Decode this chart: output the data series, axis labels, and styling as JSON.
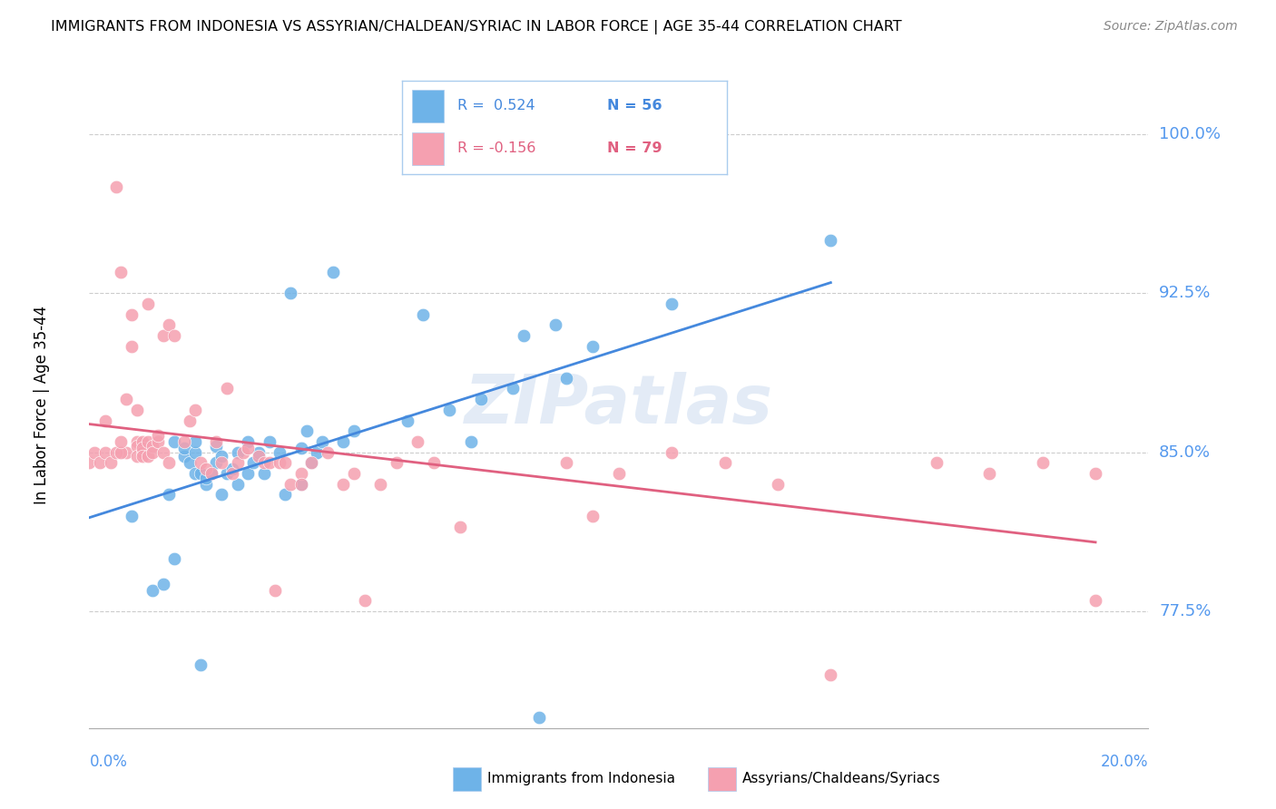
{
  "title": "IMMIGRANTS FROM INDONESIA VS ASSYRIAN/CHALDEAN/SYRIAC IN LABOR FORCE | AGE 35-44 CORRELATION CHART",
  "source": "Source: ZipAtlas.com",
  "ylabel": "In Labor Force | Age 35-44",
  "ylim": [
    72.0,
    102.5
  ],
  "xlim": [
    0.0,
    0.2
  ],
  "watermark": "ZIPatlas",
  "legend_R1": "R =  0.524",
  "legend_N1": "N = 56",
  "legend_R2": "R = -0.156",
  "legend_N2": "N = 79",
  "color_indonesia": "#6eb3e8",
  "color_assyrian": "#f5a0b0",
  "color_trend_indonesia": "#4488dd",
  "color_trend_assyrian": "#e06080",
  "background_color": "#ffffff",
  "grid_color": "#cccccc",
  "yticks_right": [
    77.5,
    85.0,
    92.5,
    100.0
  ],
  "ytick_right_labels": [
    "77.5%",
    "85.0%",
    "92.5%",
    "100.0%"
  ],
  "indonesia_x": [
    0.008,
    0.012,
    0.014,
    0.015,
    0.016,
    0.016,
    0.018,
    0.018,
    0.019,
    0.02,
    0.02,
    0.02,
    0.021,
    0.021,
    0.022,
    0.022,
    0.023,
    0.024,
    0.024,
    0.025,
    0.025,
    0.026,
    0.027,
    0.028,
    0.028,
    0.03,
    0.03,
    0.031,
    0.032,
    0.033,
    0.034,
    0.036,
    0.037,
    0.038,
    0.04,
    0.04,
    0.041,
    0.042,
    0.043,
    0.044,
    0.046,
    0.048,
    0.05,
    0.06,
    0.063,
    0.068,
    0.072,
    0.074,
    0.08,
    0.082,
    0.085,
    0.088,
    0.09,
    0.095,
    0.11,
    0.14
  ],
  "indonesia_y": [
    82.0,
    78.5,
    78.8,
    83.0,
    80.0,
    85.5,
    84.8,
    85.2,
    84.5,
    84.0,
    85.0,
    85.5,
    75.0,
    84.0,
    83.5,
    83.8,
    84.0,
    84.5,
    85.3,
    83.0,
    84.8,
    84.0,
    84.2,
    83.5,
    85.0,
    85.5,
    84.0,
    84.5,
    85.0,
    84.0,
    85.5,
    85.0,
    83.0,
    92.5,
    85.2,
    83.5,
    86.0,
    84.5,
    85.0,
    85.5,
    93.5,
    85.5,
    86.0,
    86.5,
    91.5,
    87.0,
    85.5,
    87.5,
    88.0,
    90.5,
    72.5,
    91.0,
    88.5,
    90.0,
    92.0,
    95.0
  ],
  "assyrian_x": [
    0.005,
    0.006,
    0.007,
    0.007,
    0.008,
    0.008,
    0.009,
    0.009,
    0.009,
    0.009,
    0.01,
    0.01,
    0.01,
    0.01,
    0.011,
    0.011,
    0.011,
    0.012,
    0.012,
    0.013,
    0.013,
    0.014,
    0.014,
    0.015,
    0.015,
    0.016,
    0.018,
    0.019,
    0.02,
    0.021,
    0.022,
    0.023,
    0.024,
    0.025,
    0.026,
    0.027,
    0.028,
    0.029,
    0.03,
    0.032,
    0.033,
    0.034,
    0.035,
    0.036,
    0.037,
    0.038,
    0.04,
    0.04,
    0.042,
    0.045,
    0.048,
    0.05,
    0.052,
    0.055,
    0.058,
    0.062,
    0.065,
    0.07,
    0.09,
    0.095,
    0.1,
    0.11,
    0.12,
    0.13,
    0.14,
    0.16,
    0.17,
    0.18,
    0.19,
    0.0,
    0.001,
    0.002,
    0.003,
    0.003,
    0.004,
    0.005,
    0.006,
    0.006,
    0.19
  ],
  "assyrian_y": [
    97.5,
    93.5,
    85.0,
    87.5,
    90.0,
    91.5,
    85.5,
    85.3,
    87.0,
    84.8,
    85.5,
    85.0,
    85.2,
    84.8,
    92.0,
    85.5,
    84.8,
    85.3,
    85.0,
    85.5,
    85.8,
    90.5,
    85.0,
    91.0,
    84.5,
    90.5,
    85.5,
    86.5,
    87.0,
    84.5,
    84.2,
    84.0,
    85.5,
    84.5,
    88.0,
    84.0,
    84.5,
    85.0,
    85.2,
    84.8,
    84.5,
    84.5,
    78.5,
    84.5,
    84.5,
    83.5,
    84.0,
    83.5,
    84.5,
    85.0,
    83.5,
    84.0,
    78.0,
    83.5,
    84.5,
    85.5,
    84.5,
    81.5,
    84.5,
    82.0,
    84.0,
    85.0,
    84.5,
    83.5,
    74.5,
    84.5,
    84.0,
    84.5,
    84.0,
    84.5,
    85.0,
    84.5,
    85.0,
    86.5,
    84.5,
    85.0,
    85.0,
    85.5,
    78.0
  ]
}
